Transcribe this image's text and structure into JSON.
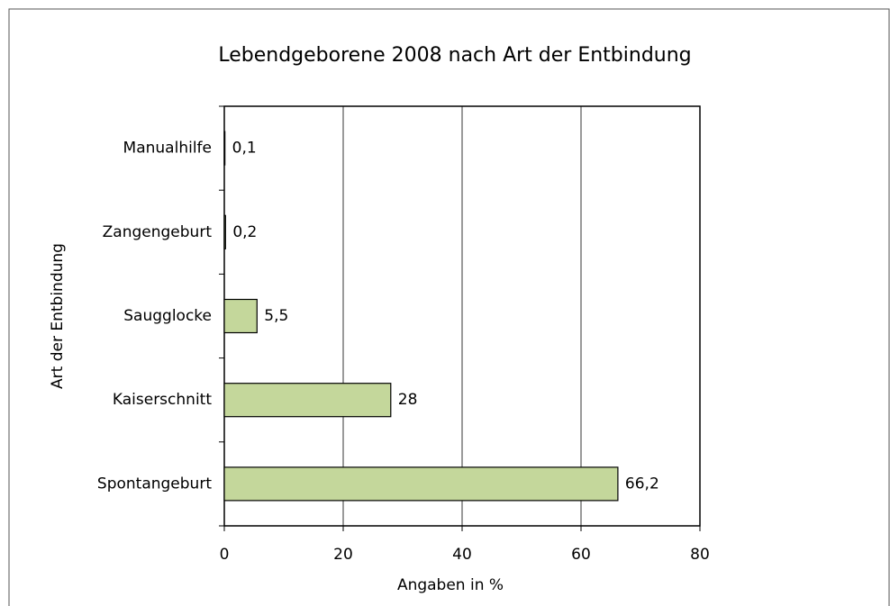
{
  "chart_data": {
    "type": "barh",
    "title": "Lebendgeborene 2008 nach Art der Entbindung",
    "x_label": "Angaben in %",
    "y_label": "Art der Entbindung",
    "categories": [
      "Manualhilfe",
      "Zangengeburt",
      "Saugglocke",
      "Kaiserschnitt",
      "Spontangeburt"
    ],
    "values": [
      0.1,
      0.2,
      5.5,
      28,
      66.2
    ],
    "value_labels": [
      "0,1",
      "0,2",
      "5,5",
      "28",
      "66,2"
    ],
    "color": "#c4d79b",
    "xlim": [
      0,
      80
    ],
    "xticks": [
      0,
      20,
      40,
      60,
      80
    ],
    "grid": true
  }
}
